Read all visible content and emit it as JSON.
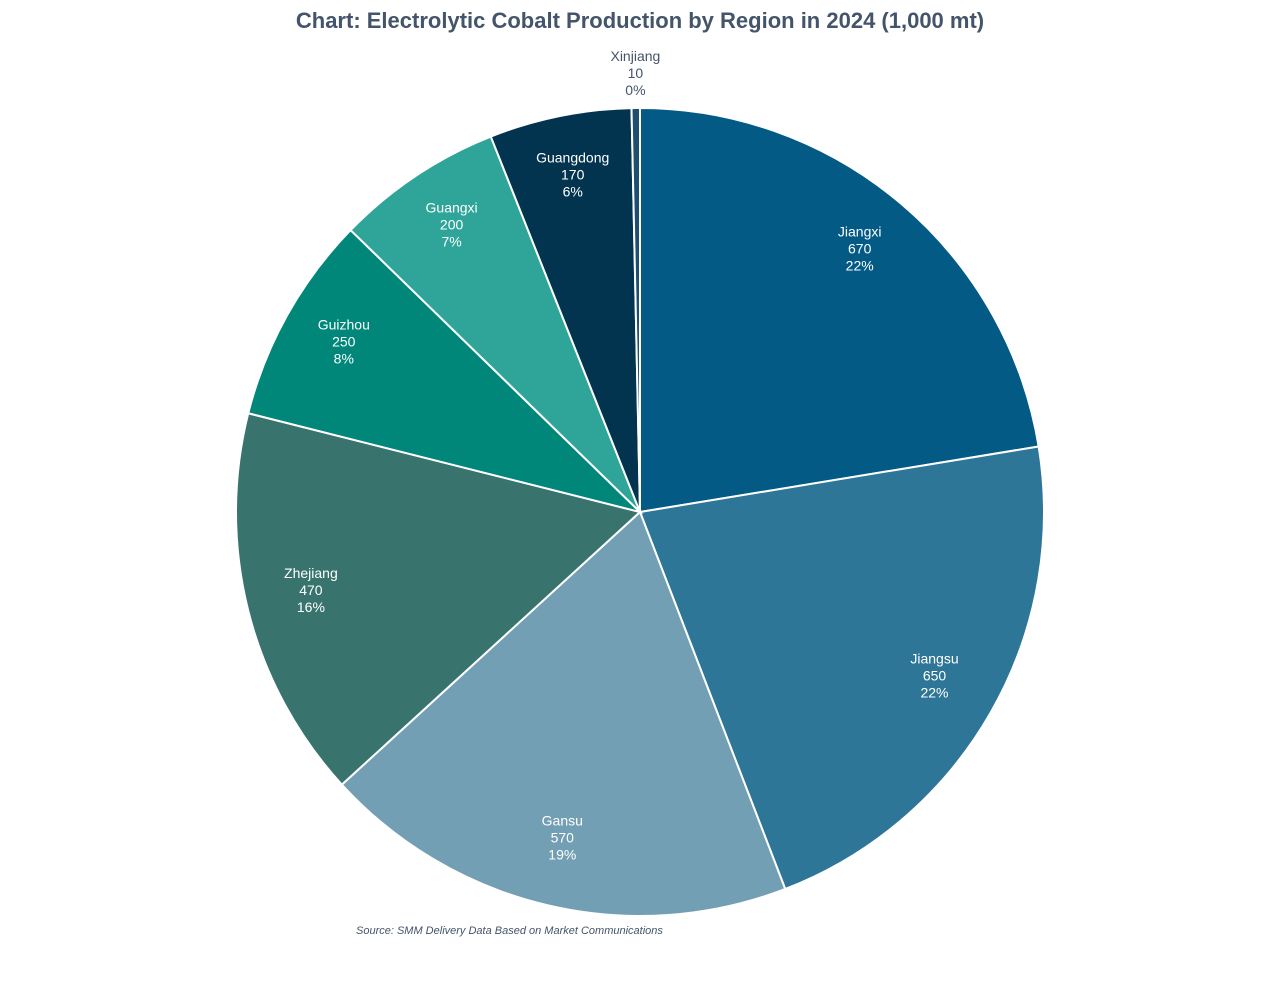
{
  "chart_data": {
    "type": "pie",
    "title": "Chart: Electrolytic Cobalt Production by Region in 2024 (1,000 mt)",
    "source": "Source: SMM Delivery Data Based on Market Communications",
    "start_angle_deg": 0,
    "direction": "clockwise",
    "slices": [
      {
        "label": "Jiangxi",
        "value": 670,
        "value_label": "670",
        "percent_label": "22%",
        "color": "#035a84",
        "label_color": "#ffffff"
      },
      {
        "label": "Jiangsu",
        "value": 650,
        "value_label": "650",
        "percent_label": "22%",
        "color": "#2e7697",
        "label_color": "#ffffff"
      },
      {
        "label": "Gansu",
        "value": 570,
        "value_label": "570",
        "percent_label": "19%",
        "color": "#739fb4",
        "label_color": "#ffffff"
      },
      {
        "label": "Zhejiang",
        "value": 470,
        "value_label": "470",
        "percent_label": "16%",
        "color": "#38746d",
        "label_color": "#ffffff"
      },
      {
        "label": "Guizhou",
        "value": 250,
        "value_label": "250",
        "percent_label": "8%",
        "color": "#00877a",
        "label_color": "#ffffff"
      },
      {
        "label": "Guangxi",
        "value": 200,
        "value_label": "200",
        "percent_label": "7%",
        "color": "#2fa59a",
        "label_color": "#ffffff"
      },
      {
        "label": "Guangdong",
        "value": 170,
        "value_label": "170",
        "percent_label": "6%",
        "color": "#03344f",
        "label_color": "#ffffff"
      },
      {
        "label": "Xinjiang",
        "value": 10,
        "value_label": "10",
        "percent_label": "0%",
        "color": "#1f4e6e",
        "label_color": "#44546a",
        "label_outside": true
      }
    ]
  }
}
